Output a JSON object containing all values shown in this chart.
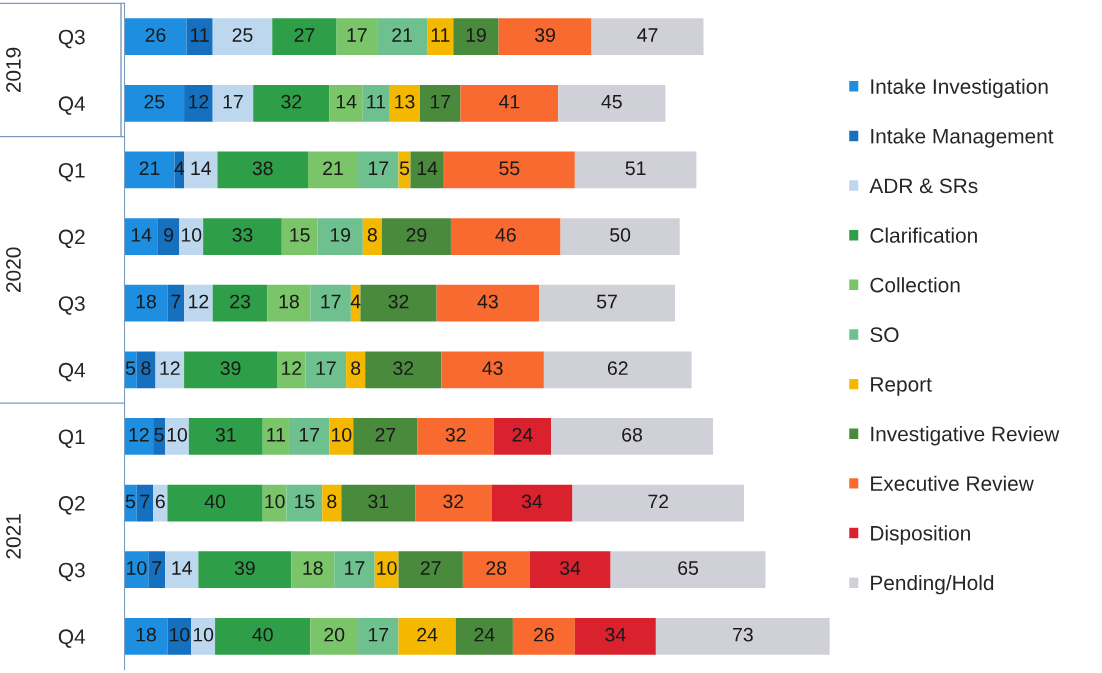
{
  "chart_data": {
    "type": "bar",
    "orientation": "horizontal",
    "stacked": true,
    "data_labels": true,
    "legend": "right",
    "grid": false,
    "categories": [
      "Q3",
      "Q4",
      "Q1",
      "Q2",
      "Q3",
      "Q4",
      "Q1",
      "Q2",
      "Q3",
      "Q4"
    ],
    "annotations": [
      "2019",
      "2020",
      "2021"
    ],
    "series": [
      {
        "name": "Intake Investigation",
        "color": "#1e8fe0",
        "values": [
          26,
          25,
          21,
          14,
          18,
          5,
          12,
          5,
          10,
          18
        ]
      },
      {
        "name": "Intake Management",
        "color": "#1570c0",
        "values": [
          11,
          12,
          4,
          9,
          7,
          8,
          5,
          7,
          7,
          10
        ]
      },
      {
        "name": "ADR & SRs",
        "color": "#bdd7ee",
        "values": [
          25,
          17,
          14,
          10,
          12,
          12,
          10,
          6,
          14,
          10
        ]
      },
      {
        "name": "Clarification",
        "color": "#2e9e48",
        "values": [
          27,
          32,
          38,
          33,
          23,
          39,
          31,
          40,
          39,
          40
        ]
      },
      {
        "name": "Collection",
        "color": "#7ac46a",
        "values": [
          17,
          14,
          21,
          15,
          18,
          12,
          11,
          10,
          18,
          20
        ]
      },
      {
        "name": "SO",
        "color": "#6fc08f",
        "values": [
          21,
          11,
          17,
          19,
          17,
          17,
          17,
          15,
          17,
          17
        ]
      },
      {
        "name": "Report",
        "color": "#f5b800",
        "values": [
          11,
          13,
          5,
          8,
          4,
          8,
          10,
          8,
          10,
          24
        ]
      },
      {
        "name": "Investigative Review",
        "color": "#4a8a3c",
        "values": [
          19,
          17,
          14,
          29,
          32,
          32,
          27,
          31,
          27,
          24
        ]
      },
      {
        "name": "Executive Review",
        "color": "#f96a30",
        "values": [
          39,
          41,
          55,
          46,
          43,
          43,
          32,
          32,
          28,
          26
        ]
      },
      {
        "name": "Disposition",
        "color": "#d9222e",
        "values": [
          null,
          null,
          null,
          null,
          null,
          null,
          24,
          34,
          34,
          34
        ]
      },
      {
        "name": "Pending/Hold",
        "color": "#d0d0d8",
        "values": [
          47,
          45,
          51,
          50,
          57,
          62,
          68,
          72,
          65,
          73
        ]
      }
    ]
  }
}
